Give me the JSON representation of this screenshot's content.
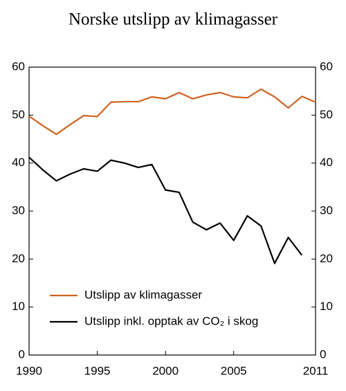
{
  "chart_data": {
    "type": "line",
    "title": "Norske utslipp av klimagasser",
    "x": [
      1990,
      1991,
      1992,
      1993,
      1994,
      1995,
      1996,
      1997,
      1998,
      1999,
      2000,
      2001,
      2002,
      2003,
      2004,
      2005,
      2006,
      2007,
      2008,
      2009,
      2010,
      2011
    ],
    "series": [
      {
        "name": "Utslipp av klimagasser",
        "color": "#d0621e",
        "values": [
          49.8,
          47.8,
          46.0,
          48.0,
          49.9,
          49.7,
          52.7,
          52.8,
          52.8,
          53.8,
          53.4,
          54.7,
          53.4,
          54.2,
          54.7,
          53.8,
          53.6,
          55.4,
          53.8,
          51.5,
          53.9,
          52.7
        ]
      },
      {
        "name": "Utslipp inkl. opptak av CO₂  i skog",
        "color": "#000000",
        "values": [
          41.2,
          38.6,
          36.3,
          37.7,
          38.8,
          38.3,
          40.6,
          40.0,
          39.1,
          39.7,
          34.4,
          33.9,
          27.7,
          26.1,
          27.5,
          23.9,
          29.0,
          26.9,
          19.1,
          24.5,
          20.8,
          null
        ]
      }
    ],
    "xlim": [
      1990,
      2011
    ],
    "xticks": [
      1990,
      1995,
      2000,
      2005,
      2011
    ],
    "ylim": [
      0,
      60
    ],
    "yticks": [
      0,
      10,
      20,
      30,
      40,
      50,
      60
    ]
  }
}
